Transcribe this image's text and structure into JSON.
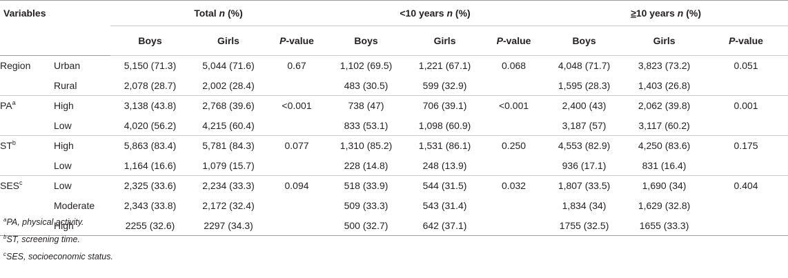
{
  "header": {
    "variables": "Variables",
    "groups": [
      {
        "pre": "Total ",
        "n": "n",
        "post": " (%)"
      },
      {
        "pre": "<10 years ",
        "n": "n",
        "post": " (%)"
      },
      {
        "pre": "≥10 years ",
        "n": "n",
        "post": " (%)",
        "sym": "≥",
        "rest": "10 years "
      }
    ],
    "boys": "Boys",
    "girls": "Girls",
    "p_italic": "P",
    "p_rest": "-value"
  },
  "rows": [
    {
      "var": "Region",
      "sup": "",
      "cat": "Urban",
      "vals": [
        "5,150 (71.3)",
        "5,044 (71.6)",
        "0.67",
        "1,102 (69.5)",
        "1,221 (67.1)",
        "0.068",
        "4,048 (71.7)",
        "3,823 (73.2)",
        "0.051"
      ]
    },
    {
      "var": "",
      "sup": "",
      "cat": "Rural",
      "vals": [
        "2,078 (28.7)",
        "2,002 (28.4)",
        "",
        "483 (30.5)",
        "599 (32.9)",
        "",
        "1,595 (28.3)",
        "1,403 (26.8)",
        ""
      ]
    },
    {
      "var": "PA",
      "sup": "a",
      "cat": "High",
      "vals": [
        "3,138 (43.8)",
        "2,768 (39.6)",
        "<0.001",
        "738 (47)",
        "706 (39.1)",
        "<0.001",
        "2,400 (43)",
        "2,062 (39.8)",
        "0.001"
      ]
    },
    {
      "var": "",
      "sup": "",
      "cat": "Low",
      "vals": [
        "4,020 (56.2)",
        "4,215 (60.4)",
        "",
        "833 (53.1)",
        "1,098 (60.9)",
        "",
        "3,187 (57)",
        "3,117 (60.2)",
        ""
      ]
    },
    {
      "var": "ST",
      "sup": "b",
      "cat": "High",
      "vals": [
        "5,863 (83.4)",
        "5,781 (84.3)",
        "0.077",
        "1,310 (85.2)",
        "1,531 (86.1)",
        "0.250",
        "4,553 (82.9)",
        "4,250 (83.6)",
        "0.175"
      ]
    },
    {
      "var": "",
      "sup": "",
      "cat": "Low",
      "vals": [
        "1,164 (16.6)",
        "1,079 (15.7)",
        "",
        "228 (14.8)",
        "248 (13.9)",
        "",
        "936 (17.1)",
        "831 (16.4)",
        ""
      ]
    },
    {
      "var": "SES",
      "sup": "c",
      "cat": "Low",
      "vals": [
        "2,325 (33.6)",
        "2,234 (33.3)",
        "0.094",
        "518 (33.9)",
        "544 (31.5)",
        "0.032",
        "1,807 (33.5)",
        "1,690 (34)",
        "0.404"
      ]
    },
    {
      "var": "",
      "sup": "",
      "cat": "Moderate",
      "vals": [
        "2,343 (33.8)",
        "2,172 (32.4)",
        "",
        "509 (33.3)",
        "543 (31.4)",
        "",
        "1,834 (34)",
        "1,629 (32.8)",
        ""
      ]
    },
    {
      "var": "",
      "sup": "",
      "cat": "High",
      "vals": [
        "2255 (32.6)",
        "2297 (34.3)",
        "",
        "500 (32.7)",
        "642 (37.1)",
        "",
        "1755 (32.5)",
        "1655 (33.3)",
        ""
      ]
    }
  ],
  "footnotes": [
    {
      "sup": "a",
      "text": "PA, physical activity."
    },
    {
      "sup": "b",
      "text": "ST, screening time."
    },
    {
      "sup": "c",
      "text": "SES, socioeconomic status."
    }
  ]
}
